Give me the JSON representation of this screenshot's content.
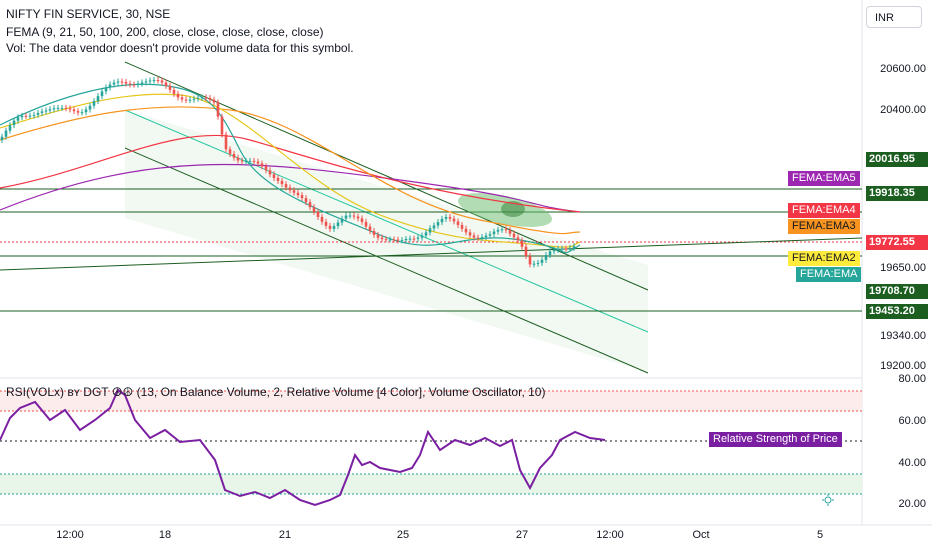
{
  "header": {
    "symbol_title": "NIFTY FIN SERVICE, 30, NSE",
    "indicator": "FEMA (9, 21, 50, 100, 200, close, close, close, close, close)",
    "vol_note": "Vol: The data vendor doesn't provide volume data for this symbol."
  },
  "currency_button": "INR",
  "price_axis": [
    "20600.00",
    "20400.00",
    "19650.00",
    "19340.00",
    "19200.00"
  ],
  "price_tags": {
    "t1": "20016.95",
    "t2": "19918.35",
    "t3": "19772.55",
    "t4": "19708.70",
    "t5": "19453.20"
  },
  "ema_labels": {
    "ema5": "FEMA:EMA5",
    "ema4": "FEMA:EMA4",
    "ema3": "FEMA:EMA3",
    "ema2": "FEMA:EMA2",
    "ema1": "FEMA:EMA"
  },
  "rsi": {
    "title": "RSI(VOLx) ʙʏ DGT ☮☮ (13, On Balance Volume, 2, Relative Volume [4 Color], Volume Oscillator, 10)",
    "axis": [
      "80.00",
      "60.00",
      "40.00",
      "20.00"
    ],
    "tag": "Relative Strength of Price"
  },
  "time_axis": [
    "12:00",
    "18",
    "21",
    "25",
    "27",
    "12:00",
    "Oct",
    "5"
  ],
  "colors": {
    "up": "#26a69a",
    "down": "#ef5350",
    "ema1": "#26a69a",
    "ema2": "#e6c619",
    "ema3": "#f7931e",
    "ema4": "#f23645",
    "ema5": "#9c27b0",
    "rsi_line": "#7b1fa2",
    "channel": "#1b5e20"
  }
}
